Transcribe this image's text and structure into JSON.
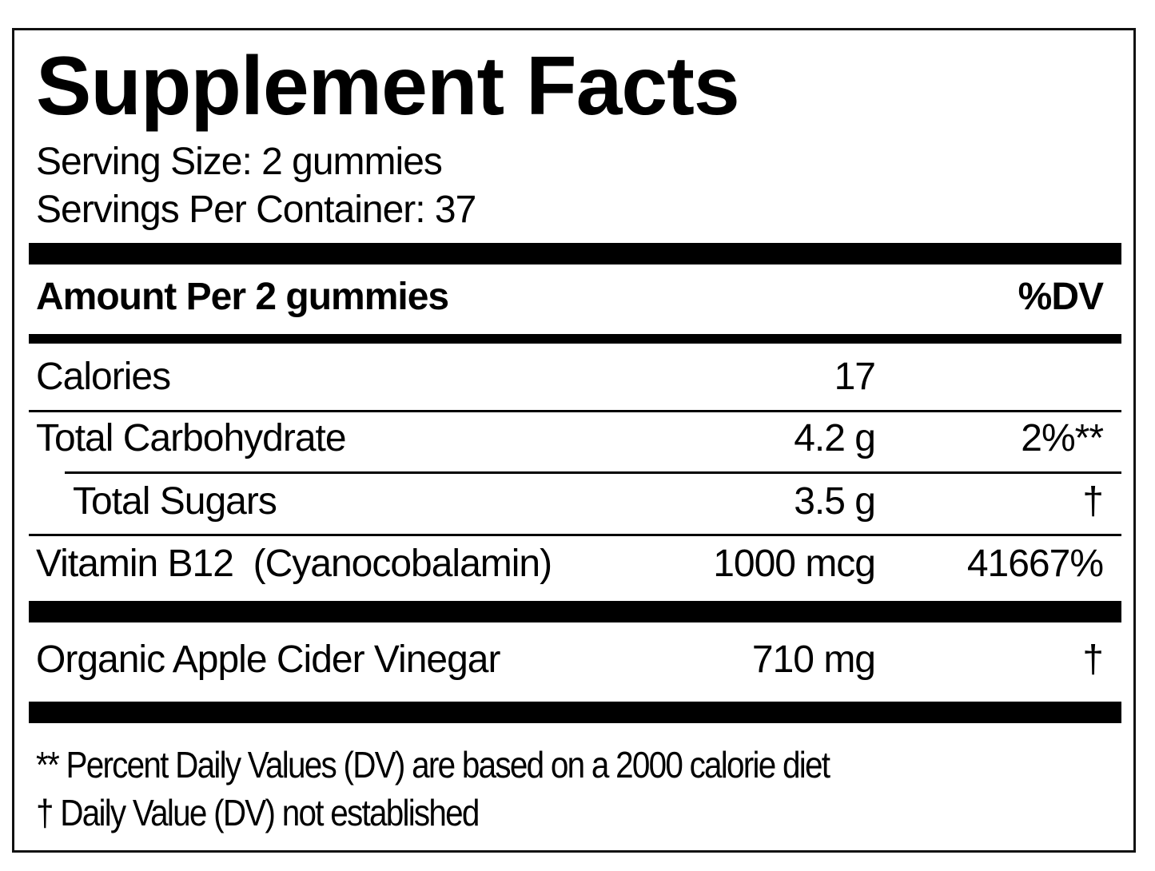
{
  "title": "Supplement Facts",
  "serving_size": "Serving Size: 2 gummies",
  "servings_per_container": "Servings Per Container: 37",
  "header": {
    "amount_label": "Amount Per 2 gummies",
    "dv_label": "%DV"
  },
  "rows": [
    {
      "name": "Calories",
      "amount": "17",
      "dv": ""
    },
    {
      "name": "Total Carbohydrate",
      "amount": "4.2 g",
      "dv": "2%**"
    },
    {
      "name": "Total Sugars",
      "amount": "3.5 g",
      "dv": "†"
    },
    {
      "name": "Vitamin B12  (Cyanocobalamin)",
      "amount": "1000 mcg",
      "dv": "41667%"
    },
    {
      "name": "Organic Apple Cider Vinegar",
      "amount": "710 mg",
      "dv": "†"
    }
  ],
  "footnotes": [
    "** Percent Daily Values (DV) are based on a 2000 calorie diet",
    "† Daily Value (DV) not established"
  ]
}
